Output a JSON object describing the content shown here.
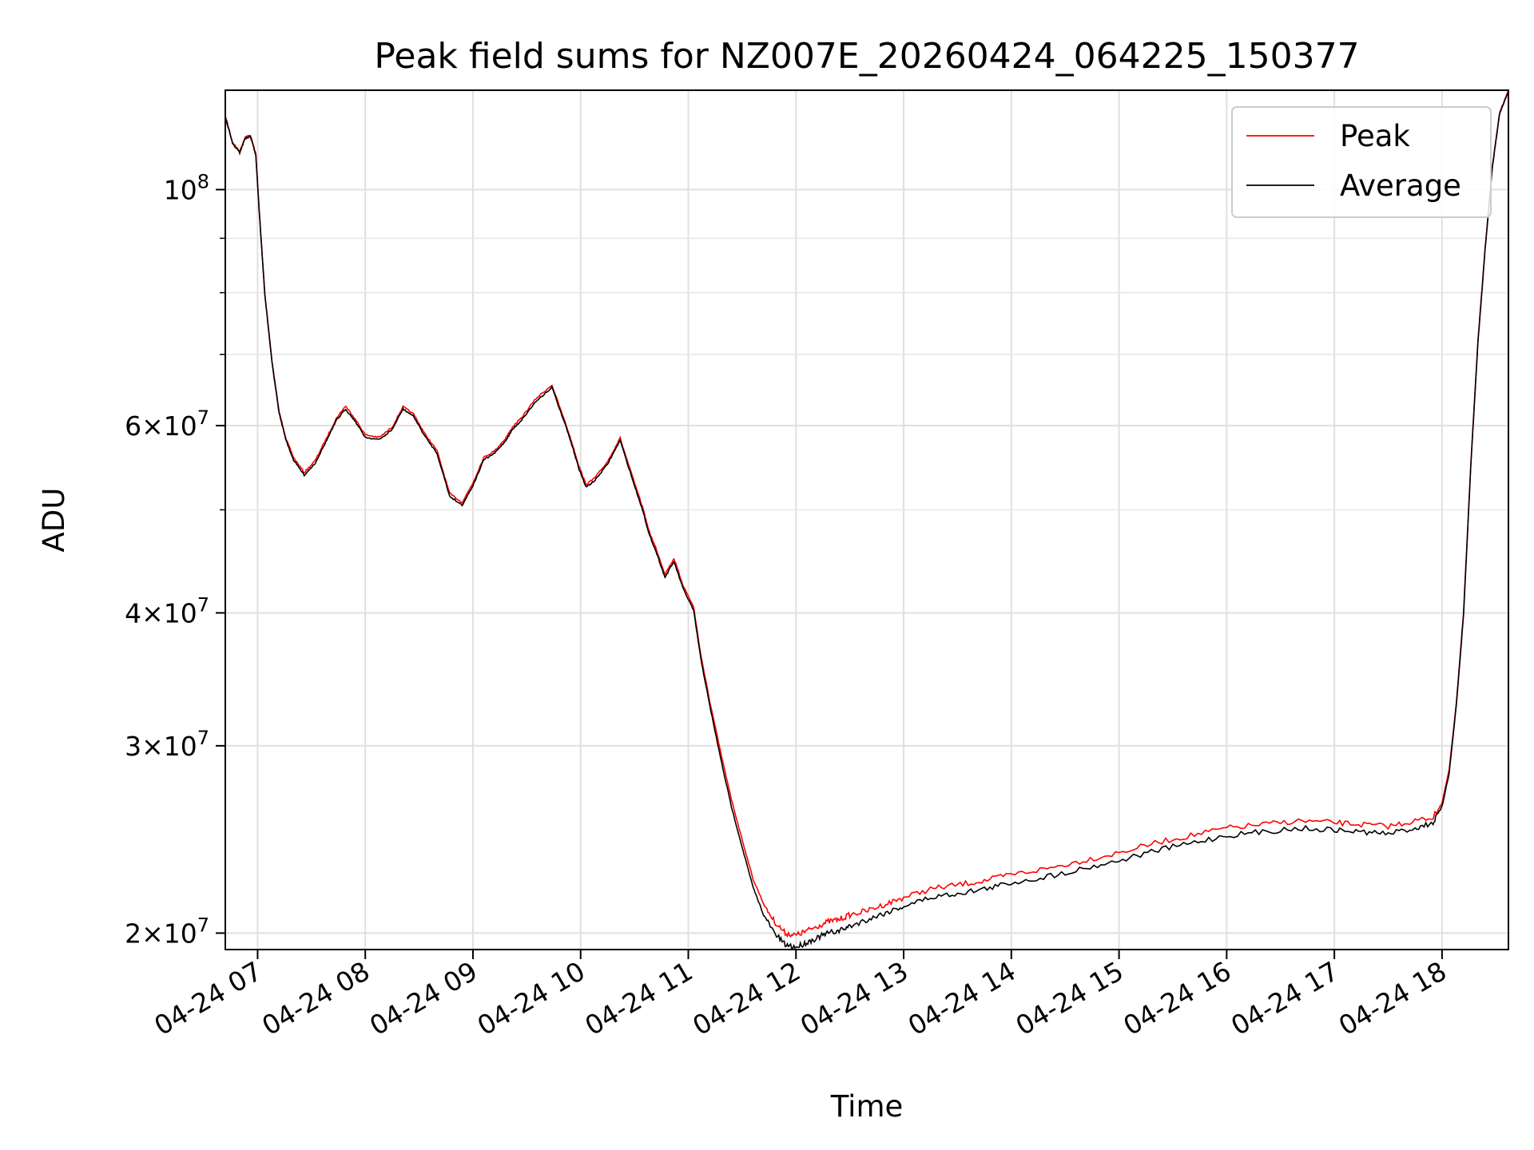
{
  "chart_data": {
    "type": "line",
    "title": "Peak field sums for NZ007E_20260424_064225_150377",
    "xlabel": "Time",
    "ylabel": "ADU",
    "yscale": "log",
    "xlim": [
      "2026-04-24 06:42",
      "2026-04-24 18:37"
    ],
    "ylim": [
      19300000,
      124000000
    ],
    "grid": true,
    "legend_position": "top-right",
    "x_ticks": [
      "04-24 07",
      "04-24 08",
      "04-24 09",
      "04-24 10",
      "04-24 11",
      "04-24 12",
      "04-24 13",
      "04-24 14",
      "04-24 15",
      "04-24 16",
      "04-24 17",
      "04-24 18"
    ],
    "y_ticks": [
      {
        "value": 20000000,
        "mant": "2",
        "exp": "7"
      },
      {
        "value": 30000000,
        "mant": "3",
        "exp": "7"
      },
      {
        "value": 40000000,
        "mant": "4",
        "exp": "7"
      },
      {
        "value": 60000000,
        "mant": "6",
        "exp": "7"
      },
      {
        "value": 100000000,
        "mant": "",
        "exp": "8"
      }
    ],
    "x": [
      "2026-04-24 06:42",
      "2026-04-24 06:46",
      "2026-04-24 06:50",
      "2026-04-24 06:53",
      "2026-04-24 06:56",
      "2026-04-24 06:59",
      "2026-04-24 07:01",
      "2026-04-24 07:04",
      "2026-04-24 07:08",
      "2026-04-24 07:12",
      "2026-04-24 07:16",
      "2026-04-24 07:20",
      "2026-04-24 07:26",
      "2026-04-24 07:32",
      "2026-04-24 07:38",
      "2026-04-24 07:44",
      "2026-04-24 07:49",
      "2026-04-24 07:54",
      "2026-04-24 08:00",
      "2026-04-24 08:08",
      "2026-04-24 08:15",
      "2026-04-24 08:21",
      "2026-04-24 08:27",
      "2026-04-24 08:33",
      "2026-04-24 08:40",
      "2026-04-24 08:47",
      "2026-04-24 08:54",
      "2026-04-24 09:00",
      "2026-04-24 09:06",
      "2026-04-24 09:12",
      "2026-04-24 09:18",
      "2026-04-24 09:22",
      "2026-04-24 09:27",
      "2026-04-24 09:35",
      "2026-04-24 09:44",
      "2026-04-24 09:52",
      "2026-04-24 09:56",
      "2026-04-24 09:59",
      "2026-04-24 10:03",
      "2026-04-24 10:08",
      "2026-04-24 10:15",
      "2026-04-24 10:22",
      "2026-04-24 10:30",
      "2026-04-24 10:35",
      "2026-04-24 10:38",
      "2026-04-24 10:42",
      "2026-04-24 10:47",
      "2026-04-24 10:52",
      "2026-04-24 10:57",
      "2026-04-24 11:03",
      "2026-04-24 11:07",
      "2026-04-24 11:12",
      "2026-04-24 11:18",
      "2026-04-24 11:24",
      "2026-04-24 11:30",
      "2026-04-24 11:36",
      "2026-04-24 11:42",
      "2026-04-24 11:48",
      "2026-04-24 11:54",
      "2026-04-24 12:00",
      "2026-04-24 12:06",
      "2026-04-24 12:12",
      "2026-04-24 12:18",
      "2026-04-24 12:24",
      "2026-04-24 12:30",
      "2026-04-24 12:40",
      "2026-04-24 12:50",
      "2026-04-24 13:00",
      "2026-04-24 13:15",
      "2026-04-24 13:30",
      "2026-04-24 13:45",
      "2026-04-24 14:00",
      "2026-04-24 14:20",
      "2026-04-24 14:40",
      "2026-04-24 15:00",
      "2026-04-24 15:20",
      "2026-04-24 15:40",
      "2026-04-24 16:00",
      "2026-04-24 16:20",
      "2026-04-24 16:40",
      "2026-04-24 17:00",
      "2026-04-24 17:15",
      "2026-04-24 17:30",
      "2026-04-24 17:45",
      "2026-04-24 17:55",
      "2026-04-24 18:00",
      "2026-04-24 18:04",
      "2026-04-24 18:08",
      "2026-04-24 18:12",
      "2026-04-24 18:16",
      "2026-04-24 18:20",
      "2026-04-24 18:24",
      "2026-04-24 18:28",
      "2026-04-24 18:32",
      "2026-04-24 18:37"
    ],
    "series": [
      {
        "name": "Peak",
        "color": "#ff0000",
        "values": [
          117400000,
          110800000,
          108600000,
          112000000,
          112500000,
          108000000,
          95000000,
          80000000,
          69000000,
          61800000,
          58200000,
          56000000,
          54200000,
          55600000,
          58200000,
          61000000,
          62600000,
          61000000,
          58800000,
          58500000,
          59800000,
          62500000,
          61500000,
          59000000,
          56800000,
          51800000,
          50800000,
          53000000,
          56000000,
          56800000,
          58300000,
          59800000,
          61000000,
          63600000,
          65500000,
          60000000,
          57200000,
          55000000,
          52800000,
          53600000,
          55500000,
          58400000,
          53000000,
          50000000,
          47800000,
          46000000,
          43500000,
          45000000,
          42500000,
          40500000,
          36500000,
          33000000,
          29600000,
          26700000,
          24500000,
          22500000,
          21300000,
          20500000,
          20000000,
          19900000,
          20100000,
          20300000,
          20500000,
          20600000,
          20800000,
          21000000,
          21300000,
          21600000,
          22000000,
          22200000,
          22400000,
          22700000,
          23000000,
          23400000,
          23800000,
          24300000,
          24700000,
          25100000,
          25300000,
          25500000,
          25400000,
          25300000,
          25200000,
          25500000,
          25700000,
          26500000,
          28500000,
          33000000,
          40000000,
          55000000,
          72000000,
          88000000,
          105000000,
          118000000,
          124000000
        ]
      },
      {
        "name": "Average",
        "color": "#000000",
        "values": [
          117200000,
          110500000,
          108300000,
          111700000,
          112200000,
          107800000,
          94800000,
          79800000,
          68800000,
          61600000,
          58000000,
          55700000,
          53900000,
          55300000,
          57900000,
          60700000,
          62200000,
          60700000,
          58500000,
          58200000,
          59500000,
          62200000,
          61200000,
          58700000,
          56500000,
          51500000,
          50500000,
          52700000,
          55700000,
          56500000,
          58000000,
          59500000,
          60700000,
          63200000,
          65200000,
          59700000,
          56900000,
          54700000,
          52500000,
          53300000,
          55200000,
          58100000,
          52700000,
          49700000,
          47500000,
          45700000,
          43200000,
          44700000,
          42200000,
          40200000,
          36200000,
          32700000,
          29200000,
          26300000,
          24100000,
          22100000,
          20800000,
          20000000,
          19500000,
          19400000,
          19600000,
          19800000,
          20000000,
          20100000,
          20300000,
          20600000,
          20900000,
          21200000,
          21600000,
          21800000,
          22000000,
          22300000,
          22600000,
          23000000,
          23400000,
          23900000,
          24300000,
          24700000,
          24900000,
          25100000,
          25000000,
          24900000,
          24800000,
          25100000,
          25400000,
          26300000,
          28300000,
          32800000,
          39800000,
          54800000,
          71800000,
          87800000,
          104800000,
          117800000,
          123800000
        ]
      }
    ]
  }
}
